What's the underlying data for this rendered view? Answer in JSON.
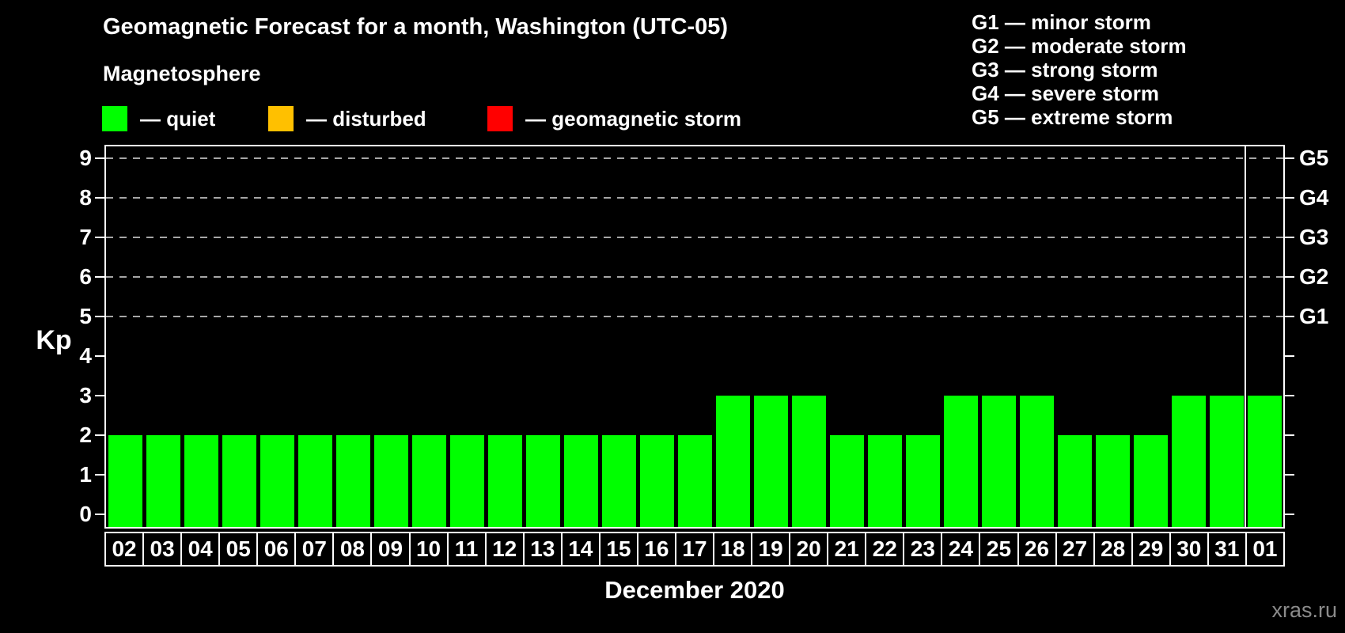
{
  "title": "Geomagnetic Forecast for a month, Washington (UTC-05)",
  "subtitle": "Magnetosphere",
  "legend": {
    "items": [
      {
        "name": "quiet",
        "label": "— quiet",
        "color": "#00ff00"
      },
      {
        "name": "disturbed",
        "label": "— disturbed",
        "color": "#ffc000"
      },
      {
        "name": "storm",
        "label": "— geomagnetic storm",
        "color": "#ff0000"
      }
    ]
  },
  "storm_scale": [
    "G1 — minor storm",
    "G2 — moderate storm",
    "G3 — strong storm",
    "G4 — severe storm",
    "G5 — extreme storm"
  ],
  "watermark": "xras.ru",
  "chart_data": {
    "type": "bar",
    "title": "Geomagnetic Forecast for a month, Washington (UTC-05)",
    "xlabel": "December 2020",
    "ylabel": "Kp",
    "categories": [
      "02",
      "03",
      "04",
      "05",
      "06",
      "07",
      "08",
      "09",
      "10",
      "11",
      "12",
      "13",
      "14",
      "15",
      "16",
      "17",
      "18",
      "19",
      "20",
      "21",
      "22",
      "23",
      "24",
      "25",
      "26",
      "27",
      "28",
      "29",
      "30",
      "31",
      "01"
    ],
    "values": [
      2,
      2,
      2,
      2,
      2,
      2,
      2,
      2,
      2,
      2,
      2,
      2,
      2,
      2,
      2,
      2,
      3,
      3,
      3,
      2,
      2,
      2,
      3,
      3,
      3,
      2,
      2,
      2,
      3,
      3,
      3
    ],
    "ylim": [
      -0.3,
      9.7
    ],
    "yticks": [
      0,
      1,
      2,
      3,
      4,
      5,
      6,
      7,
      8,
      9
    ],
    "gridlines_at": [
      5,
      6,
      7,
      8,
      9
    ],
    "grid": "dashed horizontal lines at G-storm levels only",
    "right_axis": [
      {
        "label": "G1",
        "kp": 5
      },
      {
        "label": "G2",
        "kp": 6
      },
      {
        "label": "G3",
        "kp": 7
      },
      {
        "label": "G4",
        "kp": 8
      },
      {
        "label": "G5",
        "kp": 9
      }
    ],
    "month_separator_before": "01",
    "bar_color_rule": {
      "quiet_max_kp": 3,
      "disturbed_kp": 4,
      "storm_min_kp": 5
    },
    "legend_position": "top-left"
  }
}
